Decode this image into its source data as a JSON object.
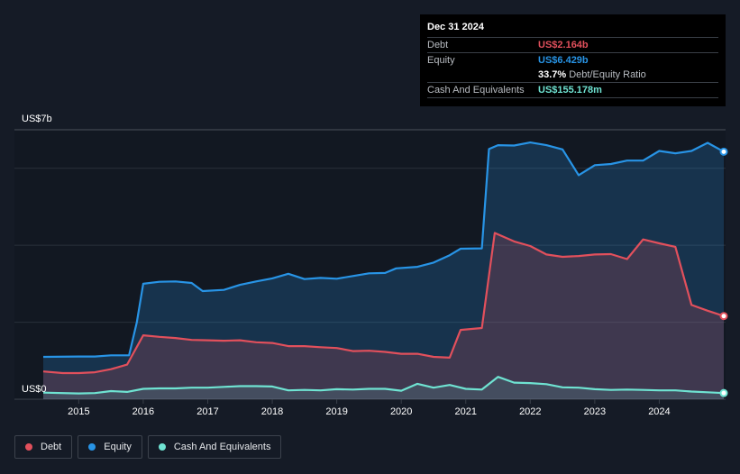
{
  "tooltip": {
    "date": "Dec 31 2024",
    "debt_label": "Debt",
    "debt_value": "US$2.164b",
    "equity_label": "Equity",
    "equity_value": "US$6.429b",
    "ratio_value": "33.7%",
    "ratio_label": "Debt/Equity Ratio",
    "cash_label": "Cash And Equivalents",
    "cash_value": "US$155.178m"
  },
  "legend": {
    "debt": "Debt",
    "equity": "Equity",
    "cash": "Cash And Equivalents"
  },
  "colors": {
    "debt": "#e2505c",
    "equity": "#2894e6",
    "cash": "#6fe3d2",
    "background": "#151b26"
  },
  "chart_data": {
    "type": "area",
    "title": "",
    "xlabel": "",
    "ylabel": "",
    "y_top_label": "US$7b",
    "y_bottom_label": "US$0",
    "xlim": [
      2014.45,
      2025.0
    ],
    "ylim": [
      0,
      7.0
    ],
    "x_ticks": [
      "2015",
      "2016",
      "2017",
      "2018",
      "2019",
      "2020",
      "2021",
      "2022",
      "2023",
      "2024"
    ],
    "x_tick_values": [
      2015,
      2016,
      2017,
      2018,
      2019,
      2020,
      2021,
      2022,
      2023,
      2024
    ],
    "series": [
      {
        "name": "Equity",
        "key": "equity",
        "points": [
          [
            2014.45,
            1.1
          ],
          [
            2015.0,
            1.11
          ],
          [
            2015.25,
            1.11
          ],
          [
            2015.5,
            1.14
          ],
          [
            2015.78,
            1.14
          ],
          [
            2015.9,
            2.0
          ],
          [
            2016.0,
            3.0
          ],
          [
            2016.25,
            3.05
          ],
          [
            2016.5,
            3.06
          ],
          [
            2016.75,
            3.02
          ],
          [
            2016.92,
            2.81
          ],
          [
            2017.25,
            2.84
          ],
          [
            2017.5,
            2.97
          ],
          [
            2017.75,
            3.06
          ],
          [
            2018.0,
            3.14
          ],
          [
            2018.25,
            3.26
          ],
          [
            2018.5,
            3.12
          ],
          [
            2018.75,
            3.15
          ],
          [
            2019.0,
            3.13
          ],
          [
            2019.25,
            3.2
          ],
          [
            2019.5,
            3.27
          ],
          [
            2019.75,
            3.28
          ],
          [
            2019.92,
            3.4
          ],
          [
            2020.25,
            3.44
          ],
          [
            2020.5,
            3.55
          ],
          [
            2020.75,
            3.74
          ],
          [
            2020.92,
            3.91
          ],
          [
            2021.25,
            3.92
          ],
          [
            2021.36,
            6.5
          ],
          [
            2021.5,
            6.6
          ],
          [
            2021.75,
            6.59
          ],
          [
            2022.0,
            6.67
          ],
          [
            2022.25,
            6.6
          ],
          [
            2022.5,
            6.49
          ],
          [
            2022.75,
            5.82
          ],
          [
            2023.0,
            6.08
          ],
          [
            2023.25,
            6.11
          ],
          [
            2023.5,
            6.2
          ],
          [
            2023.75,
            6.2
          ],
          [
            2024.0,
            6.45
          ],
          [
            2024.25,
            6.39
          ],
          [
            2024.5,
            6.45
          ],
          [
            2024.75,
            6.66
          ],
          [
            2025.0,
            6.43
          ]
        ]
      },
      {
        "name": "Debt",
        "key": "debt",
        "points": [
          [
            2014.45,
            0.72
          ],
          [
            2014.75,
            0.68
          ],
          [
            2015.0,
            0.68
          ],
          [
            2015.25,
            0.7
          ],
          [
            2015.5,
            0.78
          ],
          [
            2015.75,
            0.9
          ],
          [
            2016.0,
            1.66
          ],
          [
            2016.25,
            1.62
          ],
          [
            2016.5,
            1.59
          ],
          [
            2016.75,
            1.54
          ],
          [
            2017.0,
            1.53
          ],
          [
            2017.25,
            1.52
          ],
          [
            2017.5,
            1.53
          ],
          [
            2017.75,
            1.48
          ],
          [
            2018.0,
            1.46
          ],
          [
            2018.25,
            1.38
          ],
          [
            2018.5,
            1.38
          ],
          [
            2018.75,
            1.35
          ],
          [
            2019.0,
            1.33
          ],
          [
            2019.25,
            1.25
          ],
          [
            2019.5,
            1.26
          ],
          [
            2019.75,
            1.23
          ],
          [
            2020.0,
            1.18
          ],
          [
            2020.25,
            1.18
          ],
          [
            2020.5,
            1.1
          ],
          [
            2020.75,
            1.08
          ],
          [
            2020.92,
            1.8
          ],
          [
            2021.25,
            1.85
          ],
          [
            2021.45,
            4.32
          ],
          [
            2021.75,
            4.1
          ],
          [
            2022.0,
            3.98
          ],
          [
            2022.25,
            3.76
          ],
          [
            2022.5,
            3.7
          ],
          [
            2022.75,
            3.72
          ],
          [
            2023.0,
            3.76
          ],
          [
            2023.25,
            3.77
          ],
          [
            2023.5,
            3.64
          ],
          [
            2023.75,
            4.15
          ],
          [
            2024.0,
            4.05
          ],
          [
            2024.25,
            3.96
          ],
          [
            2024.5,
            2.45
          ],
          [
            2024.75,
            2.3
          ],
          [
            2025.0,
            2.16
          ]
        ]
      },
      {
        "name": "Cash And Equivalents",
        "key": "cash",
        "points": [
          [
            2014.45,
            0.17
          ],
          [
            2015.0,
            0.15
          ],
          [
            2015.25,
            0.16
          ],
          [
            2015.5,
            0.21
          ],
          [
            2015.75,
            0.19
          ],
          [
            2016.0,
            0.27
          ],
          [
            2016.25,
            0.28
          ],
          [
            2016.5,
            0.28
          ],
          [
            2016.75,
            0.3
          ],
          [
            2017.0,
            0.3
          ],
          [
            2017.25,
            0.32
          ],
          [
            2017.5,
            0.34
          ],
          [
            2017.75,
            0.34
          ],
          [
            2018.0,
            0.33
          ],
          [
            2018.25,
            0.23
          ],
          [
            2018.5,
            0.24
          ],
          [
            2018.75,
            0.23
          ],
          [
            2019.0,
            0.26
          ],
          [
            2019.25,
            0.25
          ],
          [
            2019.5,
            0.27
          ],
          [
            2019.75,
            0.27
          ],
          [
            2020.0,
            0.22
          ],
          [
            2020.25,
            0.4
          ],
          [
            2020.5,
            0.3
          ],
          [
            2020.75,
            0.37
          ],
          [
            2021.0,
            0.27
          ],
          [
            2021.25,
            0.25
          ],
          [
            2021.5,
            0.58
          ],
          [
            2021.75,
            0.43
          ],
          [
            2022.0,
            0.42
          ],
          [
            2022.25,
            0.39
          ],
          [
            2022.5,
            0.31
          ],
          [
            2022.75,
            0.3
          ],
          [
            2023.0,
            0.26
          ],
          [
            2023.25,
            0.24
          ],
          [
            2023.5,
            0.25
          ],
          [
            2023.75,
            0.24
          ],
          [
            2024.0,
            0.23
          ],
          [
            2024.25,
            0.23
          ],
          [
            2024.5,
            0.2
          ],
          [
            2024.75,
            0.18
          ],
          [
            2025.0,
            0.16
          ]
        ]
      }
    ]
  }
}
